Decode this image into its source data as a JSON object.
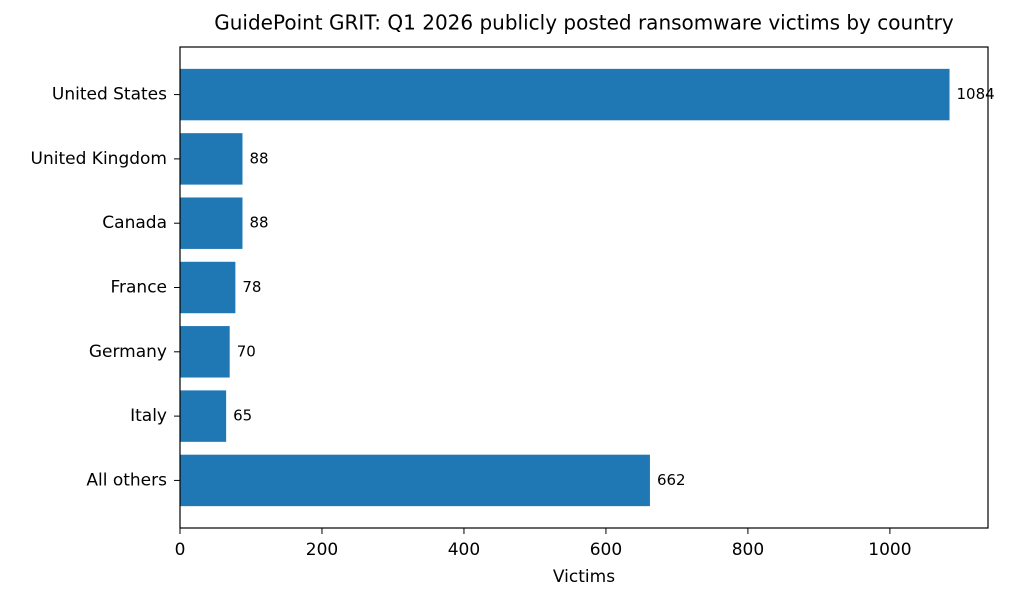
{
  "chart_data": {
    "type": "bar",
    "orientation": "horizontal",
    "title": "GuidePoint GRIT: Q1 2026 publicly posted ransomware victims by country",
    "x_label": "Victims",
    "categories": [
      "United States",
      "United Kingdom",
      "Canada",
      "France",
      "Germany",
      "Italy",
      "All others"
    ],
    "values": [
      1084,
      88,
      88,
      78,
      70,
      65,
      662
    ],
    "color": "#1f77b4",
    "xlim": [
      0,
      1138.2
    ],
    "xticks": [
      0,
      200,
      400,
      600,
      800,
      1000
    ],
    "grid": false
  }
}
